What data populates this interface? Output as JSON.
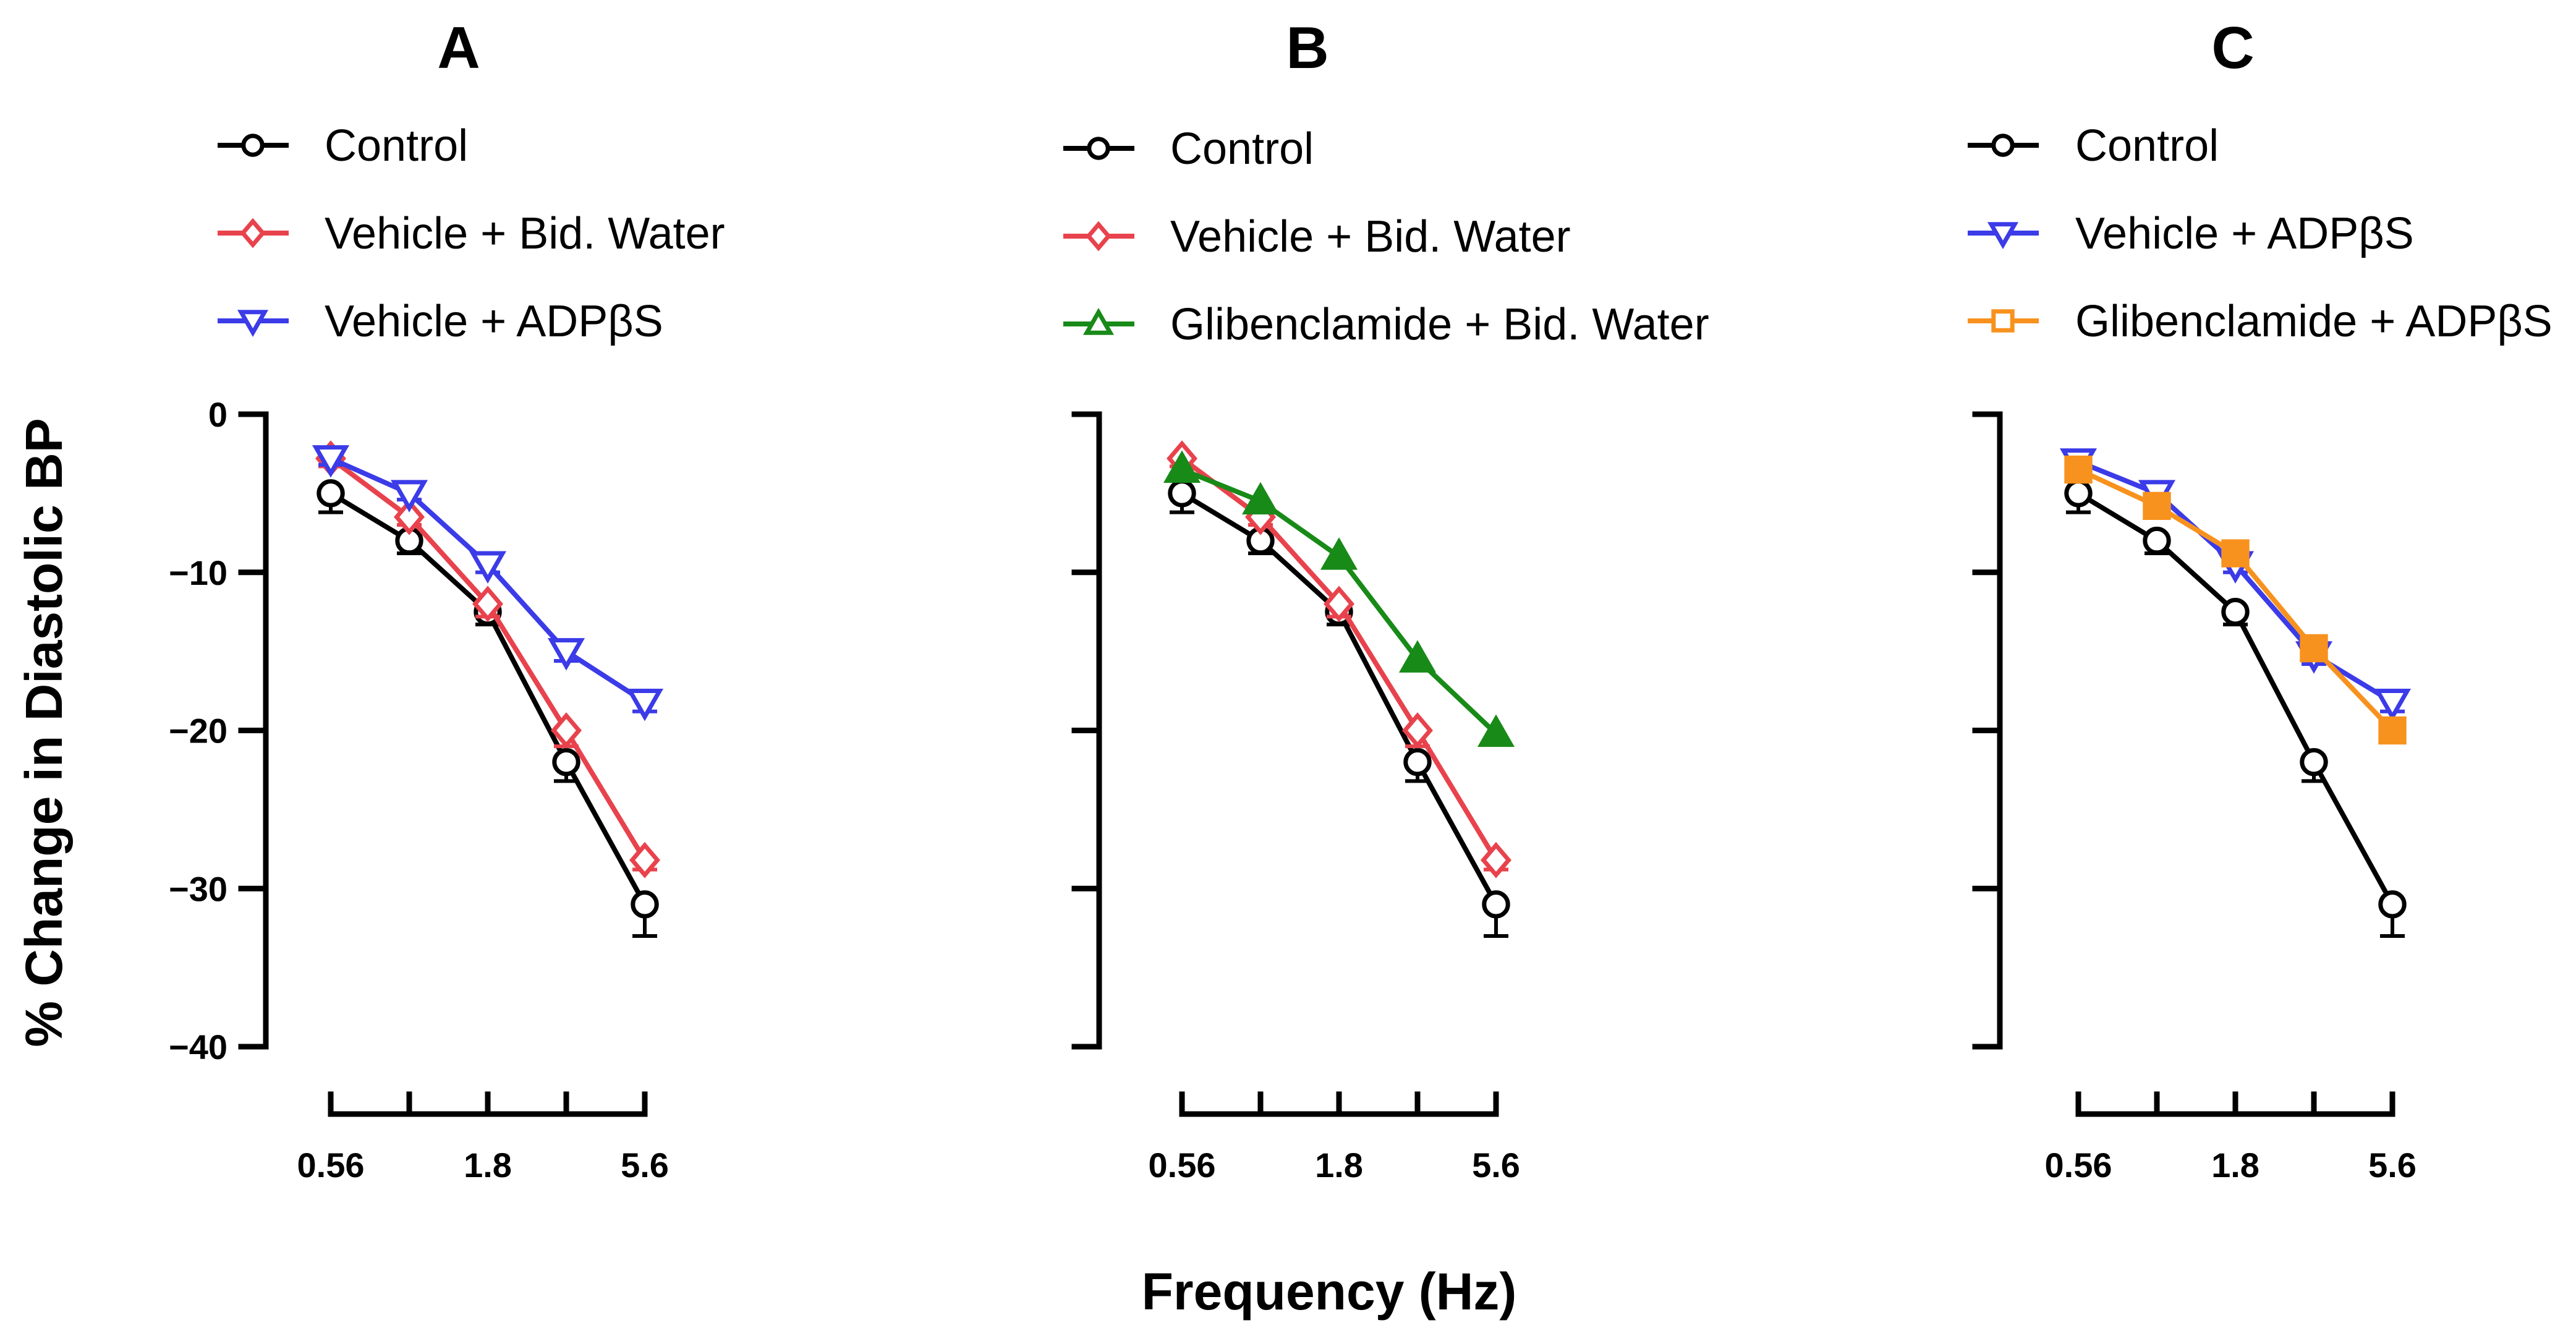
{
  "chart_data": {
    "y_axis_title": "% Change in Diastolic BP",
    "x_axis_title": "Frequency (Hz)",
    "x_tick_labels": [
      "0.56",
      "1.8",
      "5.6"
    ],
    "y_tick_labels": [
      "0",
      "−10",
      "−20",
      "−30",
      "−40"
    ],
    "panels": [
      {
        "id": "A",
        "title": "A",
        "type": "line",
        "x": [
          0.56,
          1.0,
          1.8,
          3.2,
          5.6
        ],
        "xscale": "log",
        "ylim": [
          -40,
          0
        ],
        "series": [
          {
            "name": "Control",
            "color": "#000000",
            "marker": "circle",
            "values": [
              -5,
              -8,
              -12.5,
              -22,
              -31
            ],
            "err": [
              1.2,
              0.8,
              0.8,
              1.2,
              2.0
            ]
          },
          {
            "name": "Vehicle + Bid. Water",
            "color": "#e8434d",
            "marker": "diamond",
            "values": [
              -2.8,
              -6.5,
              -12,
              -20,
              -28.2
            ],
            "err": [
              0.5,
              0.5,
              0.8,
              1.0,
              0.6
            ]
          },
          {
            "name": "Vehicle + ADPβS",
            "color": "#3b3be8",
            "marker": "triangle-down",
            "values": [
              -2.8,
              -5,
              -9.5,
              -15,
              -18.2
            ],
            "err": [
              0.4,
              0.4,
              0.5,
              0.6,
              0.6
            ]
          }
        ]
      },
      {
        "id": "B",
        "title": "B",
        "type": "line",
        "x": [
          0.56,
          1.0,
          1.8,
          3.2,
          5.6
        ],
        "xscale": "log",
        "ylim": [
          -40,
          0
        ],
        "series": [
          {
            "name": "Control",
            "color": "#000000",
            "marker": "circle",
            "values": [
              -5,
              -8,
              -12.5,
              -22,
              -31
            ],
            "err": [
              1.2,
              0.8,
              0.8,
              1.2,
              2.0
            ]
          },
          {
            "name": "Vehicle + Bid. Water",
            "color": "#e8434d",
            "marker": "diamond",
            "values": [
              -2.8,
              -6.5,
              -12,
              -20,
              -28.2
            ],
            "err": [
              0.5,
              0.5,
              0.8,
              1.0,
              0.6
            ]
          },
          {
            "name": "Glibenclamide + Bid. Water",
            "color": "#188a18",
            "marker": "triangle-up",
            "values": [
              -3.5,
              -5.5,
              -9,
              -15.5,
              -20.2
            ],
            "err": [
              0.4,
              0.4,
              0.5,
              0.6,
              0.6
            ]
          }
        ]
      },
      {
        "id": "C",
        "title": "C",
        "type": "line",
        "x": [
          0.56,
          1.0,
          1.8,
          3.2,
          5.6
        ],
        "xscale": "log",
        "ylim": [
          -40,
          0
        ],
        "series": [
          {
            "name": "Control",
            "color": "#000000",
            "marker": "circle",
            "values": [
              -5,
              -8,
              -12.5,
              -22,
              -31
            ],
            "err": [
              1.2,
              0.8,
              0.8,
              1.2,
              2.0
            ]
          },
          {
            "name": "Vehicle + ADPβS",
            "color": "#3b3be8",
            "marker": "triangle-down",
            "values": [
              -3,
              -5,
              -9.5,
              -15.2,
              -18.2
            ],
            "err": [
              0.4,
              0.4,
              0.5,
              0.6,
              0.6
            ]
          },
          {
            "name": "Glibenclamide + ADPβS",
            "color": "#f7921e",
            "marker": "square",
            "values": [
              -3.5,
              -5.8,
              -8.8,
              -14.8,
              -20
            ],
            "err": [
              0.4,
              0.4,
              0.6,
              0.6,
              0.6
            ]
          }
        ]
      }
    ]
  }
}
